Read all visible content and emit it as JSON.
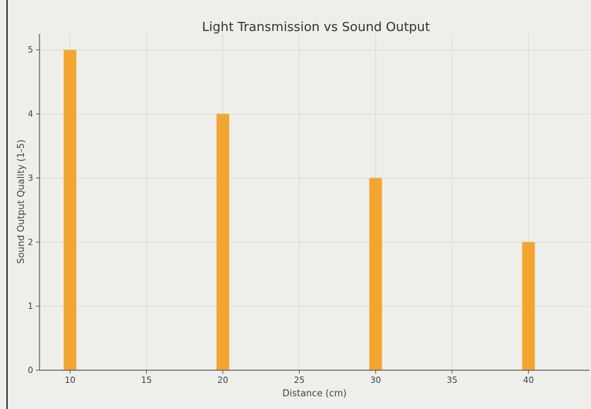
{
  "chart_data": {
    "type": "bar",
    "title": "Light Transmission vs Sound Output",
    "xlabel": "Distance (cm)",
    "ylabel": "Sound Output Quality (1-5)",
    "x": [
      10,
      20,
      30,
      40
    ],
    "values": [
      5,
      4,
      3,
      2
    ],
    "xlim": [
      8,
      44
    ],
    "ylim": [
      0,
      5.25
    ],
    "xticks": [
      10,
      15,
      20,
      25,
      30,
      35,
      40
    ],
    "yticks": [
      0,
      1,
      2,
      3,
      4,
      5
    ],
    "grid": true,
    "bar_color": "#f2a630"
  }
}
